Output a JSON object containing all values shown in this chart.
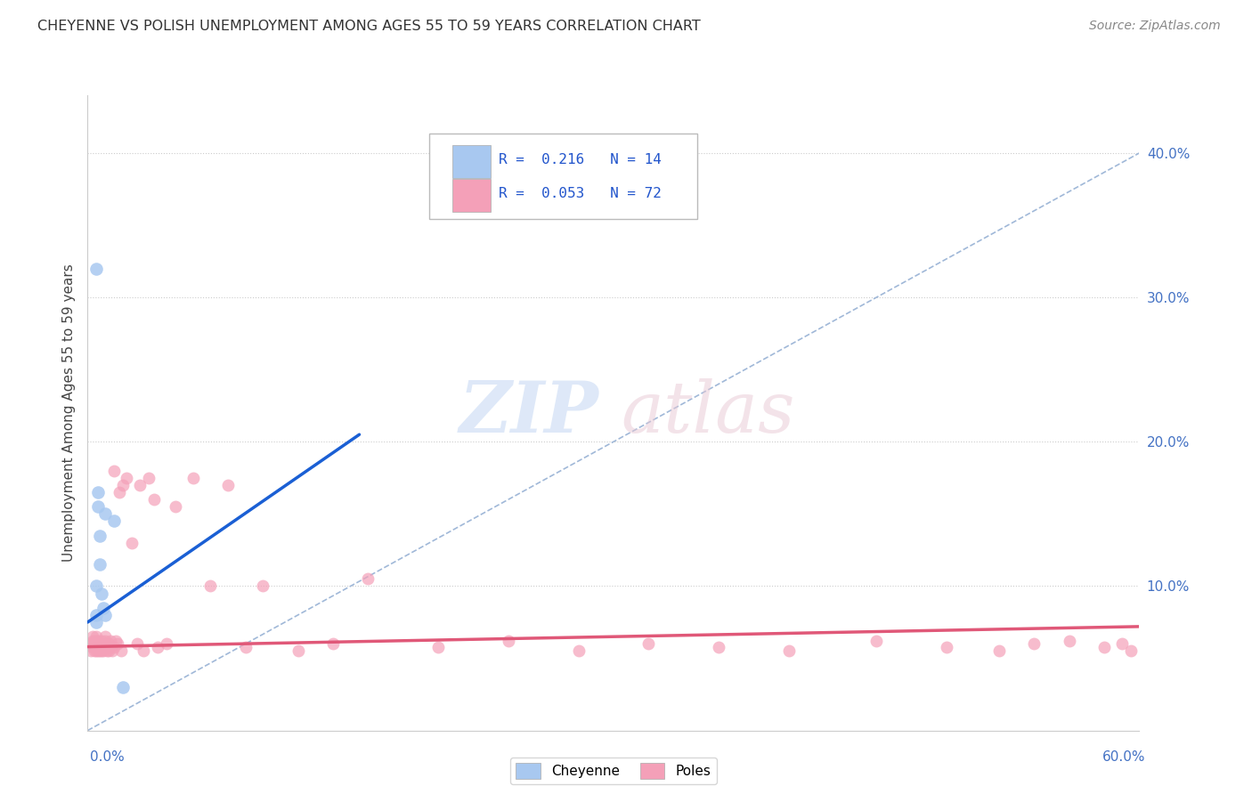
{
  "title": "CHEYENNE VS POLISH UNEMPLOYMENT AMONG AGES 55 TO 59 YEARS CORRELATION CHART",
  "source": "Source: ZipAtlas.com",
  "ylabel": "Unemployment Among Ages 55 to 59 years",
  "ytick_values": [
    0.0,
    0.1,
    0.2,
    0.3,
    0.4
  ],
  "xlim": [
    0.0,
    0.6
  ],
  "ylim": [
    0.0,
    0.44
  ],
  "cheyenne_color": "#a8c8f0",
  "poles_color": "#f4a0b8",
  "cheyenne_line_color": "#1a5fd4",
  "poles_line_color": "#e05878",
  "diag_color": "#a0b8d8",
  "background_color": "#ffffff",
  "cheyenne_x": [
    0.005,
    0.005,
    0.005,
    0.005,
    0.006,
    0.006,
    0.007,
    0.007,
    0.008,
    0.009,
    0.01,
    0.01,
    0.015,
    0.02
  ],
  "cheyenne_y": [
    0.32,
    0.08,
    0.075,
    0.1,
    0.155,
    0.165,
    0.135,
    0.115,
    0.095,
    0.085,
    0.15,
    0.08,
    0.145,
    0.03
  ],
  "poles_x": [
    0.002,
    0.002,
    0.003,
    0.003,
    0.003,
    0.004,
    0.004,
    0.004,
    0.005,
    0.005,
    0.005,
    0.005,
    0.006,
    0.006,
    0.006,
    0.007,
    0.007,
    0.007,
    0.008,
    0.008,
    0.008,
    0.009,
    0.009,
    0.009,
    0.01,
    0.01,
    0.011,
    0.011,
    0.012,
    0.012,
    0.013,
    0.013,
    0.014,
    0.015,
    0.015,
    0.016,
    0.017,
    0.018,
    0.019,
    0.02,
    0.022,
    0.025,
    0.028,
    0.03,
    0.032,
    0.035,
    0.038,
    0.04,
    0.045,
    0.05,
    0.06,
    0.07,
    0.08,
    0.09,
    0.1,
    0.12,
    0.14,
    0.16,
    0.2,
    0.24,
    0.28,
    0.32,
    0.36,
    0.4,
    0.45,
    0.49,
    0.52,
    0.54,
    0.56,
    0.58,
    0.59,
    0.595
  ],
  "poles_y": [
    0.055,
    0.06,
    0.058,
    0.062,
    0.065,
    0.055,
    0.058,
    0.062,
    0.058,
    0.055,
    0.062,
    0.065,
    0.055,
    0.058,
    0.062,
    0.06,
    0.055,
    0.058,
    0.055,
    0.062,
    0.058,
    0.06,
    0.055,
    0.058,
    0.062,
    0.065,
    0.055,
    0.058,
    0.06,
    0.055,
    0.062,
    0.058,
    0.055,
    0.18,
    0.058,
    0.062,
    0.06,
    0.165,
    0.055,
    0.17,
    0.175,
    0.13,
    0.06,
    0.17,
    0.055,
    0.175,
    0.16,
    0.058,
    0.06,
    0.155,
    0.175,
    0.1,
    0.17,
    0.058,
    0.1,
    0.055,
    0.06,
    0.105,
    0.058,
    0.062,
    0.055,
    0.06,
    0.058,
    0.055,
    0.062,
    0.058,
    0.055,
    0.06,
    0.062,
    0.058,
    0.06,
    0.055
  ],
  "cheyenne_line_x": [
    0.0,
    0.155
  ],
  "cheyenne_line_y": [
    0.075,
    0.205
  ],
  "poles_line_x": [
    0.0,
    0.6
  ],
  "poles_line_y": [
    0.058,
    0.072
  ],
  "diag_line_x": [
    0.0,
    0.6
  ],
  "diag_line_y": [
    0.0,
    0.4
  ]
}
